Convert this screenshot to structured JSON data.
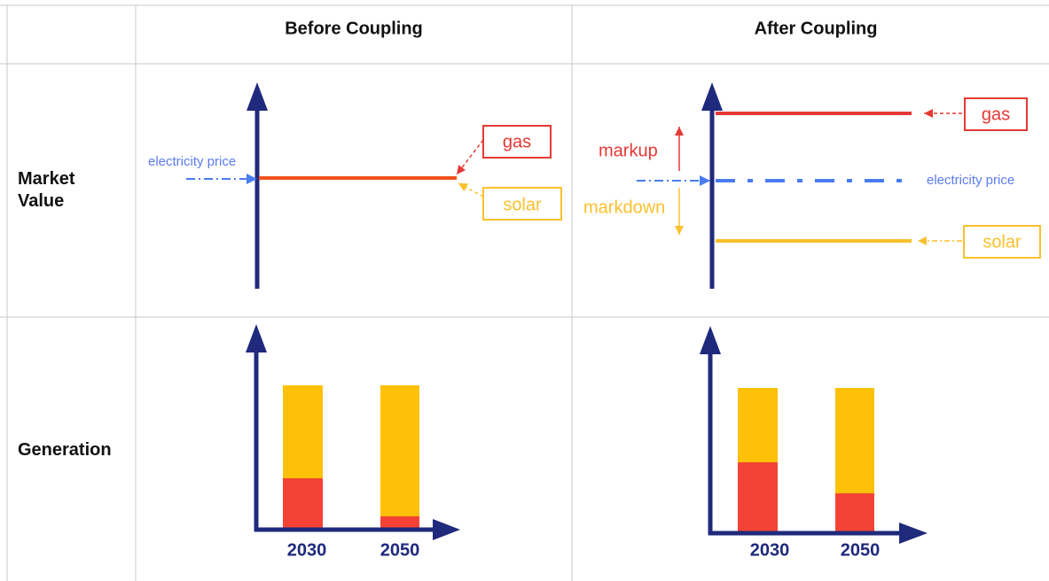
{
  "header": {
    "columns": [
      "Before Coupling",
      "After Coupling"
    ]
  },
  "rows": [
    {
      "label": "Market Value"
    },
    {
      "label": "Generation"
    }
  ],
  "before_market": {
    "electricity_price": "electricity price",
    "gas": "gas",
    "solar": "solar"
  },
  "after_market": {
    "gas": "gas",
    "markup": "markup",
    "markdown": "markdown",
    "electricity_price": "electricity price",
    "solar": "solar"
  },
  "before_generation": {
    "years": [
      "2030",
      "2050"
    ]
  },
  "after_generation": {
    "years": [
      "2030",
      "2050"
    ]
  }
}
